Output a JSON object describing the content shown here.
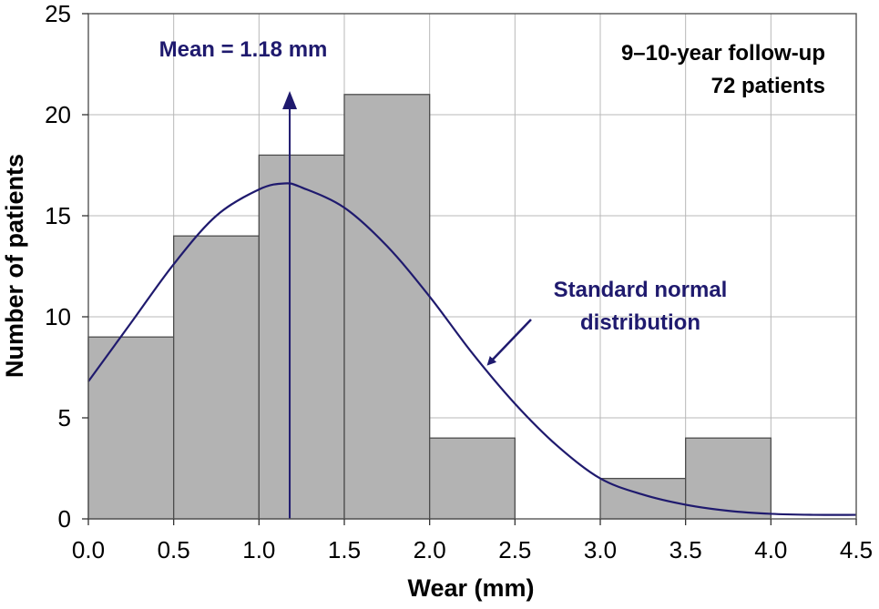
{
  "chart_data": {
    "type": "bar",
    "subtype": "histogram",
    "xlabel": "Wear (mm)",
    "ylabel": "Number of patients",
    "xlim": [
      0,
      4.5
    ],
    "ylim": [
      0,
      25
    ],
    "xticks": [
      "0.0",
      "0.5",
      "1.0",
      "1.5",
      "2.0",
      "2.5",
      "3.0",
      "3.5",
      "4.0",
      "4.5"
    ],
    "yticks": [
      "0",
      "5",
      "10",
      "15",
      "20",
      "25"
    ],
    "grid": true,
    "bins": [
      {
        "start": 0.0,
        "end": 0.5,
        "value": 9
      },
      {
        "start": 0.5,
        "end": 1.0,
        "value": 14
      },
      {
        "start": 1.0,
        "end": 1.5,
        "value": 18
      },
      {
        "start": 1.5,
        "end": 2.0,
        "value": 21
      },
      {
        "start": 2.0,
        "end": 2.5,
        "value": 4
      },
      {
        "start": 2.5,
        "end": 3.0,
        "value": 0
      },
      {
        "start": 3.0,
        "end": 3.5,
        "value": 2
      },
      {
        "start": 3.5,
        "end": 4.0,
        "value": 4
      }
    ],
    "curve": {
      "name": "Standard normal distribution",
      "x": [
        0.0,
        0.25,
        0.5,
        0.75,
        1.0,
        1.15,
        1.25,
        1.5,
        1.75,
        2.0,
        2.25,
        2.5,
        2.75,
        3.0,
        3.25,
        3.5,
        3.75,
        4.0,
        4.25,
        4.5
      ],
      "y": [
        6.8,
        9.7,
        12.6,
        15.0,
        16.3,
        16.6,
        16.4,
        15.4,
        13.5,
        11.0,
        8.2,
        5.7,
        3.6,
        2.0,
        1.2,
        0.7,
        0.4,
        0.25,
        0.2,
        0.2
      ]
    },
    "mean": {
      "label": "Mean = 1.18 mm",
      "value": 1.18
    },
    "annotations": {
      "follow_up": "9–10-year follow-up",
      "patients": "72 patients",
      "normal_line1": "Standard normal",
      "normal_line2": "distribution"
    },
    "colors": {
      "bar_fill": "#b3b3b3",
      "bar_stroke": "#4d4d4d",
      "curve": "#1f1a6e",
      "grid": "#b8b8b8"
    }
  }
}
